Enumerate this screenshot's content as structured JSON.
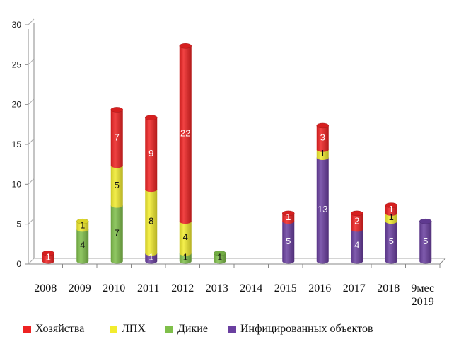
{
  "chart_data": {
    "type": "bar",
    "stacked": true,
    "three_d": true,
    "categories": [
      "2008",
      "2009",
      "2010",
      "2011",
      "2012",
      "2013",
      "2014",
      "2015",
      "2016",
      "2017",
      "2018",
      "9мес 2019"
    ],
    "series": [
      {
        "name": "Инфицированных объектов",
        "color": "#6a3fa0",
        "values": [
          0,
          0,
          0,
          1,
          0,
          0,
          0,
          5,
          13,
          4,
          5,
          5
        ]
      },
      {
        "name": "Дикие",
        "color": "#7fbf4a",
        "values": [
          0,
          4,
          7,
          0,
          1,
          1,
          0,
          0,
          0,
          0,
          0,
          0
        ]
      },
      {
        "name": "ЛПХ",
        "color": "#f2ec2e",
        "values": [
          0,
          1,
          5,
          8,
          4,
          0,
          0,
          0,
          1,
          0,
          1,
          0
        ]
      },
      {
        "name": "Хозяйства",
        "color": "#ee2222",
        "values": [
          1,
          0,
          7,
          9,
          22,
          0,
          0,
          1,
          3,
          2,
          1,
          0
        ]
      }
    ],
    "ylim": [
      0,
      30
    ],
    "yticks": [
      "0",
      "5",
      "10",
      "15",
      "20",
      "25",
      "30"
    ],
    "xlabel": "",
    "ylabel": "",
    "title": "",
    "grid": false,
    "legend_position": "bottom",
    "legend_order": [
      "Хозяйства",
      "ЛПХ",
      "Дикие",
      "Инфицированных объектов"
    ]
  }
}
